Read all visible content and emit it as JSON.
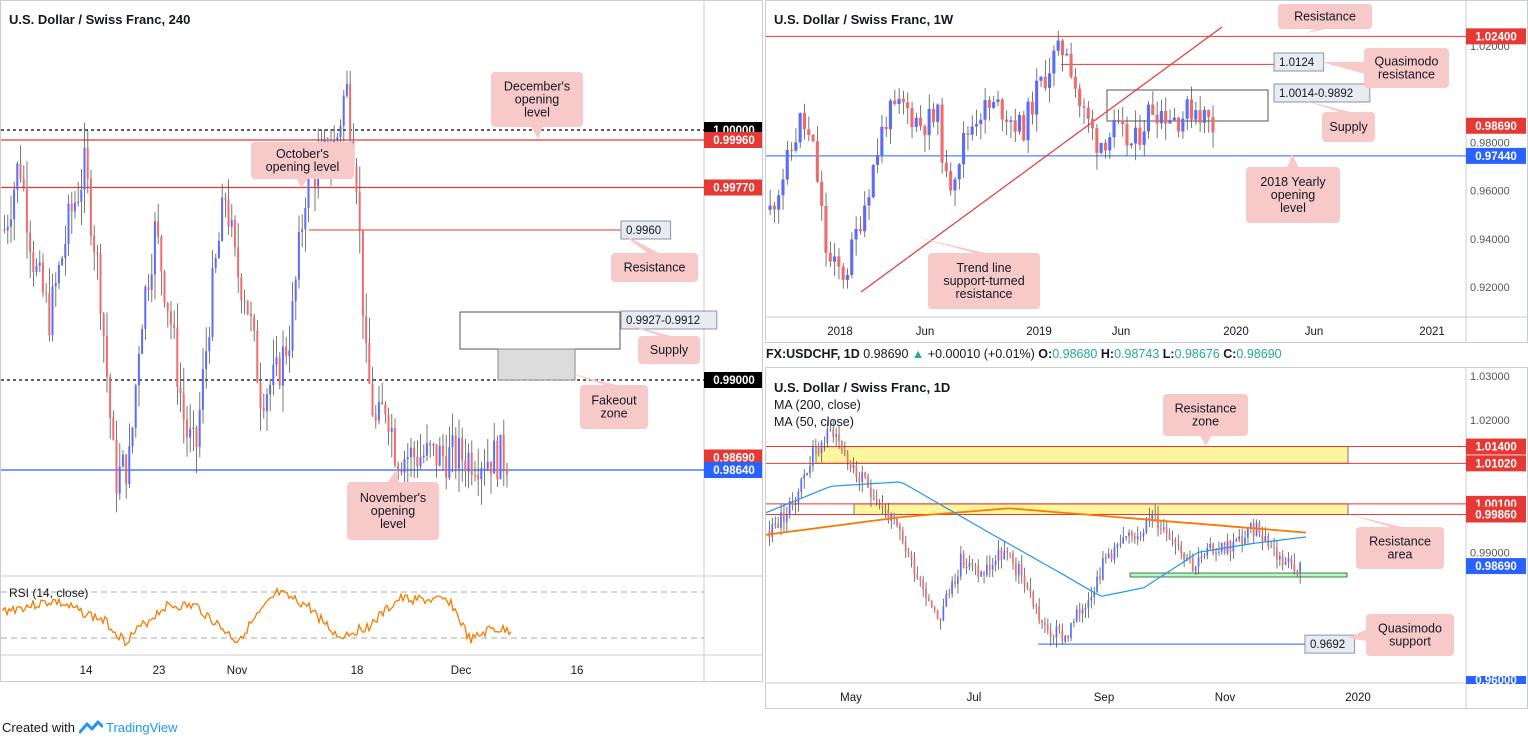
{
  "left_panel": {
    "title": "U.S. Dollar / Swiss Franc, 240",
    "price_levels": [
      {
        "label": "1.00000",
        "value": 1.0,
        "bg": "#000000",
        "color": "#ffffff"
      },
      {
        "label": "0.99960",
        "value": 0.9996,
        "bg": "#e53935",
        "color": "#ffffff"
      },
      {
        "label": "0.99770",
        "value": 0.9977,
        "bg": "#e53935",
        "color": "#ffffff"
      },
      {
        "label": "0.99000",
        "value": 0.99,
        "bg": "#000000",
        "color": "#ffffff"
      },
      {
        "label": "0.98690",
        "value": 0.9869,
        "bg": "#e53935",
        "color": "#ffffff"
      },
      {
        "label": "0.98640",
        "value": 0.9864,
        "bg": "#2962ff",
        "color": "#ffffff"
      }
    ],
    "price_tags": [
      "0.9960",
      "0.9927-0.9912"
    ],
    "annotations": [
      "December's\nopening\nlevel",
      "October's\nopening level",
      "Resistance",
      "Supply",
      "Fakeout\nzone",
      "November's\nopening\nlevel"
    ],
    "x_ticks": [
      "14",
      "23",
      "Nov",
      "18",
      "Dec",
      "16"
    ],
    "rsi_label": "RSI (14, close)"
  },
  "weekly_panel": {
    "title": "U.S. Dollar / Swiss Franc, 1W",
    "y_ticks": [
      "1.02000",
      "0.98000",
      "0.96000",
      "0.94000",
      "0.92000"
    ],
    "price_levels": [
      {
        "label": "1.02400",
        "value": 1.024,
        "bg": "#e53935",
        "color": "#ffffff"
      },
      {
        "label": "0.98690",
        "value": 0.9869,
        "bg": "#e53935",
        "color": "#ffffff"
      },
      {
        "label": "0.97440",
        "value": 0.9744,
        "bg": "#2962ff",
        "color": "#ffffff"
      }
    ],
    "price_tags": [
      "1.0124",
      "1.0014-0.9892"
    ],
    "annotations": [
      "Resistance",
      "Quasimodo\nresistance",
      "Supply",
      "2018 Yearly\nopening\nlevel",
      "Trend line\nsupport-turned\nresistance"
    ],
    "x_ticks": [
      "2018",
      "Jun",
      "2019",
      "Jun",
      "2020",
      "Jun",
      "2021"
    ]
  },
  "daily_header": {
    "symbol": "FX:USDCHF, 1D",
    "last": "0.98690",
    "change": "+0.00010 (+0.01%)",
    "o_label": "O:",
    "o": "0.98680",
    "h_label": "H:",
    "h": "0.98743",
    "l_label": "L:",
    "l": "0.98676",
    "c_label": "C:",
    "c": "0.98690"
  },
  "daily_panel": {
    "title": "U.S. Dollar / Swiss Franc, 1D",
    "ma200": "MA (200, close)",
    "ma50": "MA (50, close)",
    "y_ticks": [
      "1.03000",
      "1.02000",
      "0.99000",
      "0.96000"
    ],
    "y_tick_partial": "0.96000",
    "price_levels": [
      {
        "label": "1.01400",
        "value": 1.014,
        "bg": "#e53935",
        "color": "#ffffff"
      },
      {
        "label": "1.01020",
        "value": 1.0102,
        "bg": "#e53935",
        "color": "#ffffff"
      },
      {
        "label": "1.00100",
        "value": 1.001,
        "bg": "#e53935",
        "color": "#ffffff"
      },
      {
        "label": "0.99860",
        "value": 0.9986,
        "bg": "#e53935",
        "color": "#ffffff"
      },
      {
        "label": "0.98690",
        "value": 0.9869,
        "bg": "#2962ff",
        "color": "#ffffff"
      }
    ],
    "price_tags": [
      "0.9692"
    ],
    "annotations": [
      "Resistance\nzone",
      "Resistance\narea",
      "Quasimodo\nsupport"
    ],
    "x_ticks": [
      "May",
      "Jul",
      "Sep",
      "Nov",
      "2020"
    ]
  },
  "footer": {
    "created_with": "Created with",
    "brand": "TradingView"
  },
  "colors": {
    "up": "#5b6df7",
    "down": "#f06b6b",
    "res": "#e53935",
    "sup": "#2962ff",
    "ma200": "#f57c00",
    "ma50": "#2196f3",
    "rsi": "#f57c00",
    "zone": "#fff59d",
    "callout": "#f8c9c9"
  }
}
